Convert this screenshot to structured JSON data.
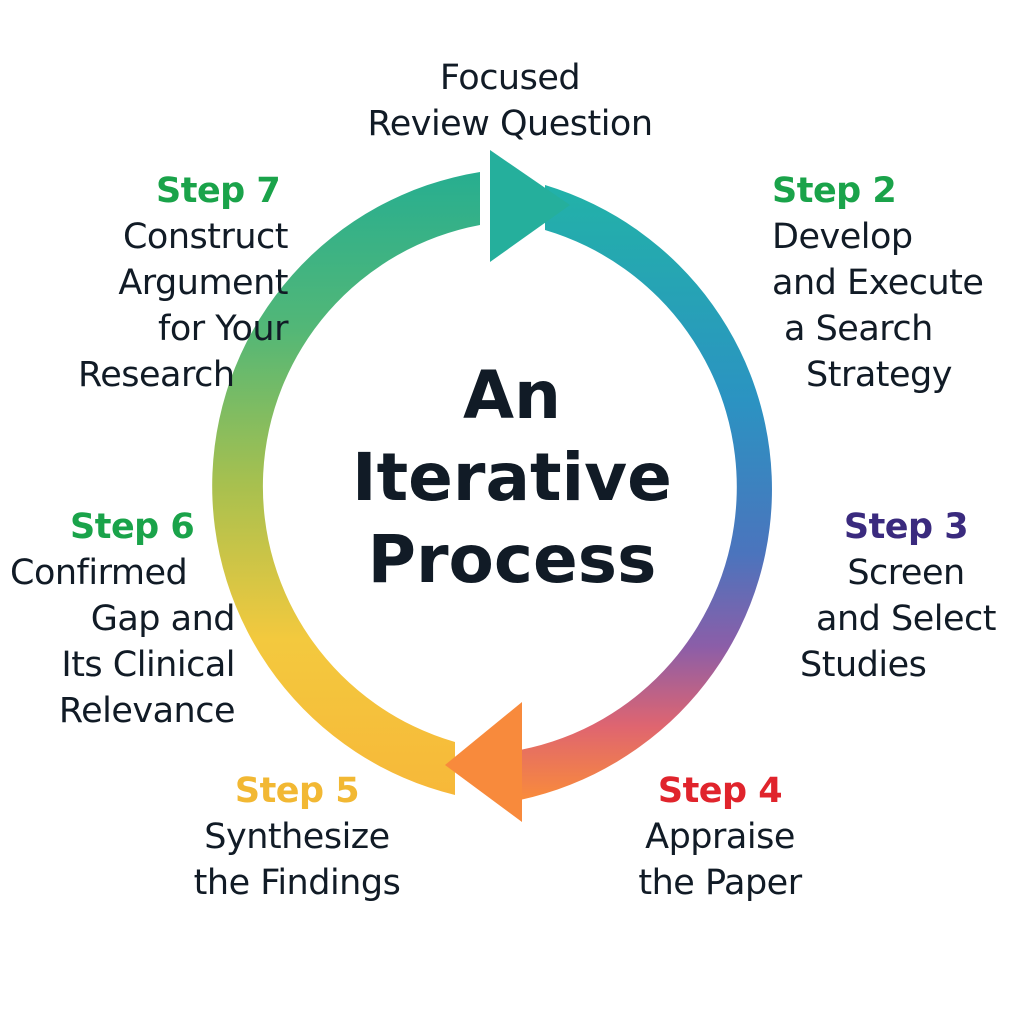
{
  "diagram": {
    "center_title": [
      "An",
      "Iterative",
      "Process"
    ],
    "start": {
      "lines": [
        "Focused",
        "Review Question"
      ]
    },
    "steps": [
      {
        "title": "Step 2",
        "color": "#1aa34a",
        "lines": [
          "Develop",
          "and Execute",
          "a Search",
          "Strategy"
        ]
      },
      {
        "title": "Step 3",
        "color": "#3a2a7e",
        "lines": [
          "Screen",
          "and Select",
          "Studies"
        ]
      },
      {
        "title": "Step 4",
        "color": "#e0242c",
        "lines": [
          "Appraise",
          "the Paper"
        ]
      },
      {
        "title": "Step 5",
        "color": "#f2b833",
        "lines": [
          "Synthesize",
          "the Findings"
        ]
      },
      {
        "title": "Step 6",
        "color": "#1aa34a",
        "lines": [
          "Confirmed",
          "Gap and",
          "Its Clinical",
          "Relevance"
        ]
      },
      {
        "title": "Step 7",
        "color": "#1aa34a",
        "lines": [
          "Construct",
          "Argument",
          "for Your",
          "Research"
        ]
      }
    ],
    "ring_colors": [
      "#27b0a6",
      "#2b96c0",
      "#3a7fc3",
      "#7a5fb0",
      "#e4606a",
      "#f88a3c",
      "#f6c340",
      "#a9c04e",
      "#4cb87a",
      "#27b0a6"
    ]
  }
}
